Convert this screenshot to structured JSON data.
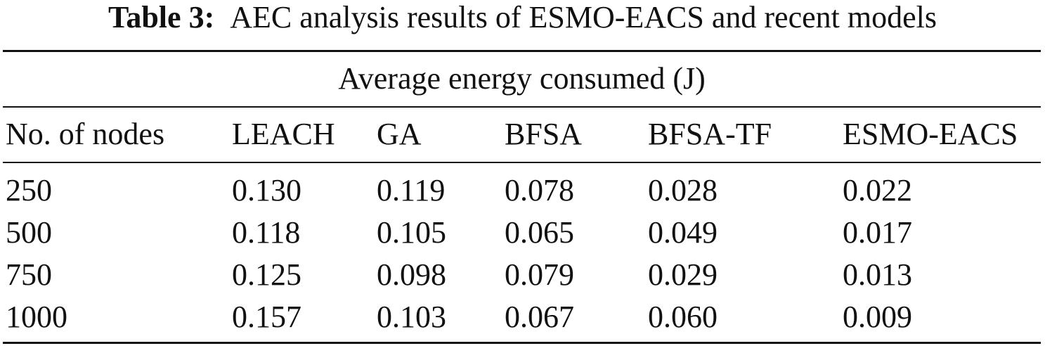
{
  "caption": {
    "label": "Table 3:",
    "text": "AEC analysis results of ESMO-EACS and recent models"
  },
  "table": {
    "group_header": "Average energy consumed (J)",
    "columns": [
      "No. of nodes",
      "LEACH",
      "GA",
      "BFSA",
      "BFSA-TF",
      "ESMO-EACS"
    ],
    "rows": [
      [
        "250",
        "0.130",
        "0.119",
        "0.078",
        "0.028",
        "0.022"
      ],
      [
        "500",
        "0.118",
        "0.105",
        "0.065",
        "0.049",
        "0.017"
      ],
      [
        "750",
        "0.125",
        "0.098",
        "0.079",
        "0.029",
        "0.013"
      ],
      [
        "1000",
        "0.157",
        "0.103",
        "0.067",
        "0.060",
        "0.009"
      ]
    ]
  }
}
